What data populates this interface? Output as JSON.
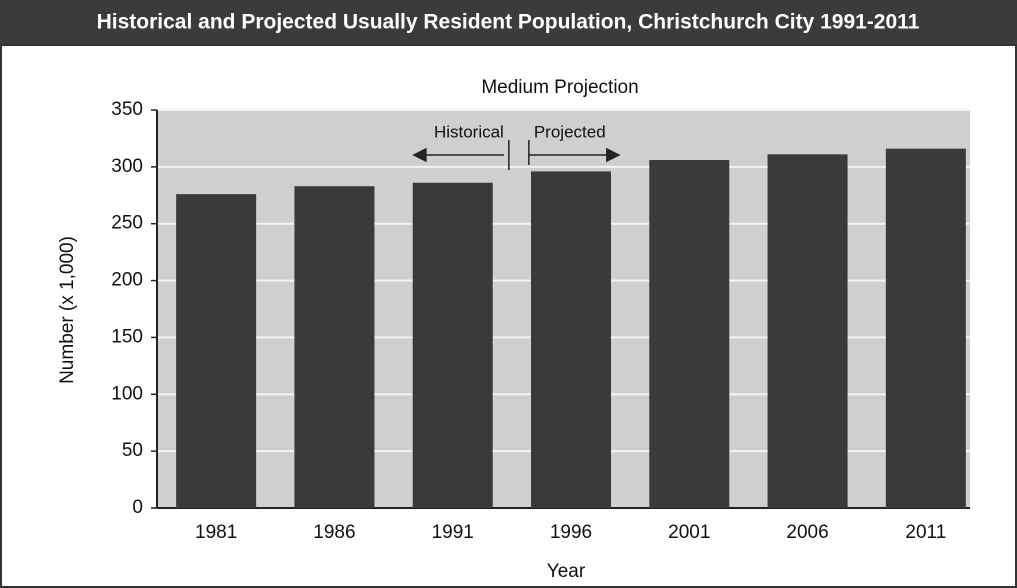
{
  "chart_data": {
    "type": "bar",
    "title": "Historical and Projected Usually Resident Population, Christchurch City 1991-2011",
    "subtitle": "Medium Projection",
    "x_label": "Year",
    "y_label": "Number (x 1,000)",
    "annotations": [
      "Historical",
      "Projected"
    ],
    "categories": [
      "1981",
      "1986",
      "1991",
      "1996",
      "2001",
      "2006",
      "2011"
    ],
    "values": [
      276,
      283,
      286,
      296,
      306,
      311,
      316
    ],
    "color": "#3a3a3a",
    "ylim": [
      0,
      350
    ],
    "yticks": [
      0,
      50,
      100,
      150,
      200,
      250,
      300,
      350
    ],
    "grid": true
  }
}
